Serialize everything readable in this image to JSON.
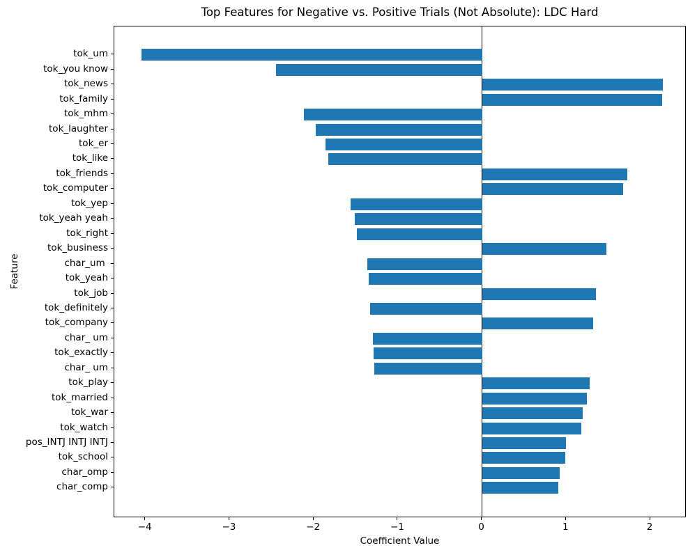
{
  "chart_data": {
    "type": "bar",
    "orientation": "horizontal",
    "title": "Top Features for Negative vs. Positive Trials (Not Absolute): LDC Hard",
    "xlabel": "Coefficient Value",
    "ylabel": "Feature",
    "xlim": [
      -4.37,
      2.43
    ],
    "xticks": [
      -4,
      -3,
      -2,
      -1,
      0,
      1,
      2
    ],
    "grid": false,
    "legend": null,
    "zero_line": true,
    "bar_color": "#1f77b4",
    "categories": [
      "tok_um",
      "tok_you know",
      "tok_news",
      "tok_family",
      "tok_mhm",
      "tok_laughter",
      "tok_er",
      "tok_like",
      "tok_friends",
      "tok_computer",
      "tok_yep",
      "tok_yeah yeah",
      "tok_right",
      "tok_business",
      "char_um ",
      "tok_yeah",
      "tok_job",
      "tok_definitely",
      "tok_company",
      "char_ um",
      "tok_exactly",
      "char_ um",
      "tok_play",
      "tok_married",
      "tok_war",
      "tok_watch",
      "pos_INTJ INTJ INTJ",
      "tok_school",
      "char_omp",
      "char_comp"
    ],
    "values": [
      -4.05,
      -2.45,
      2.15,
      2.14,
      -2.12,
      -1.98,
      -1.86,
      -1.83,
      1.73,
      1.68,
      -1.56,
      -1.51,
      -1.49,
      1.48,
      -1.36,
      -1.35,
      1.35,
      -1.33,
      1.32,
      -1.3,
      -1.29,
      -1.28,
      1.28,
      1.25,
      1.2,
      1.18,
      1.0,
      0.99,
      0.92,
      0.91
    ]
  }
}
